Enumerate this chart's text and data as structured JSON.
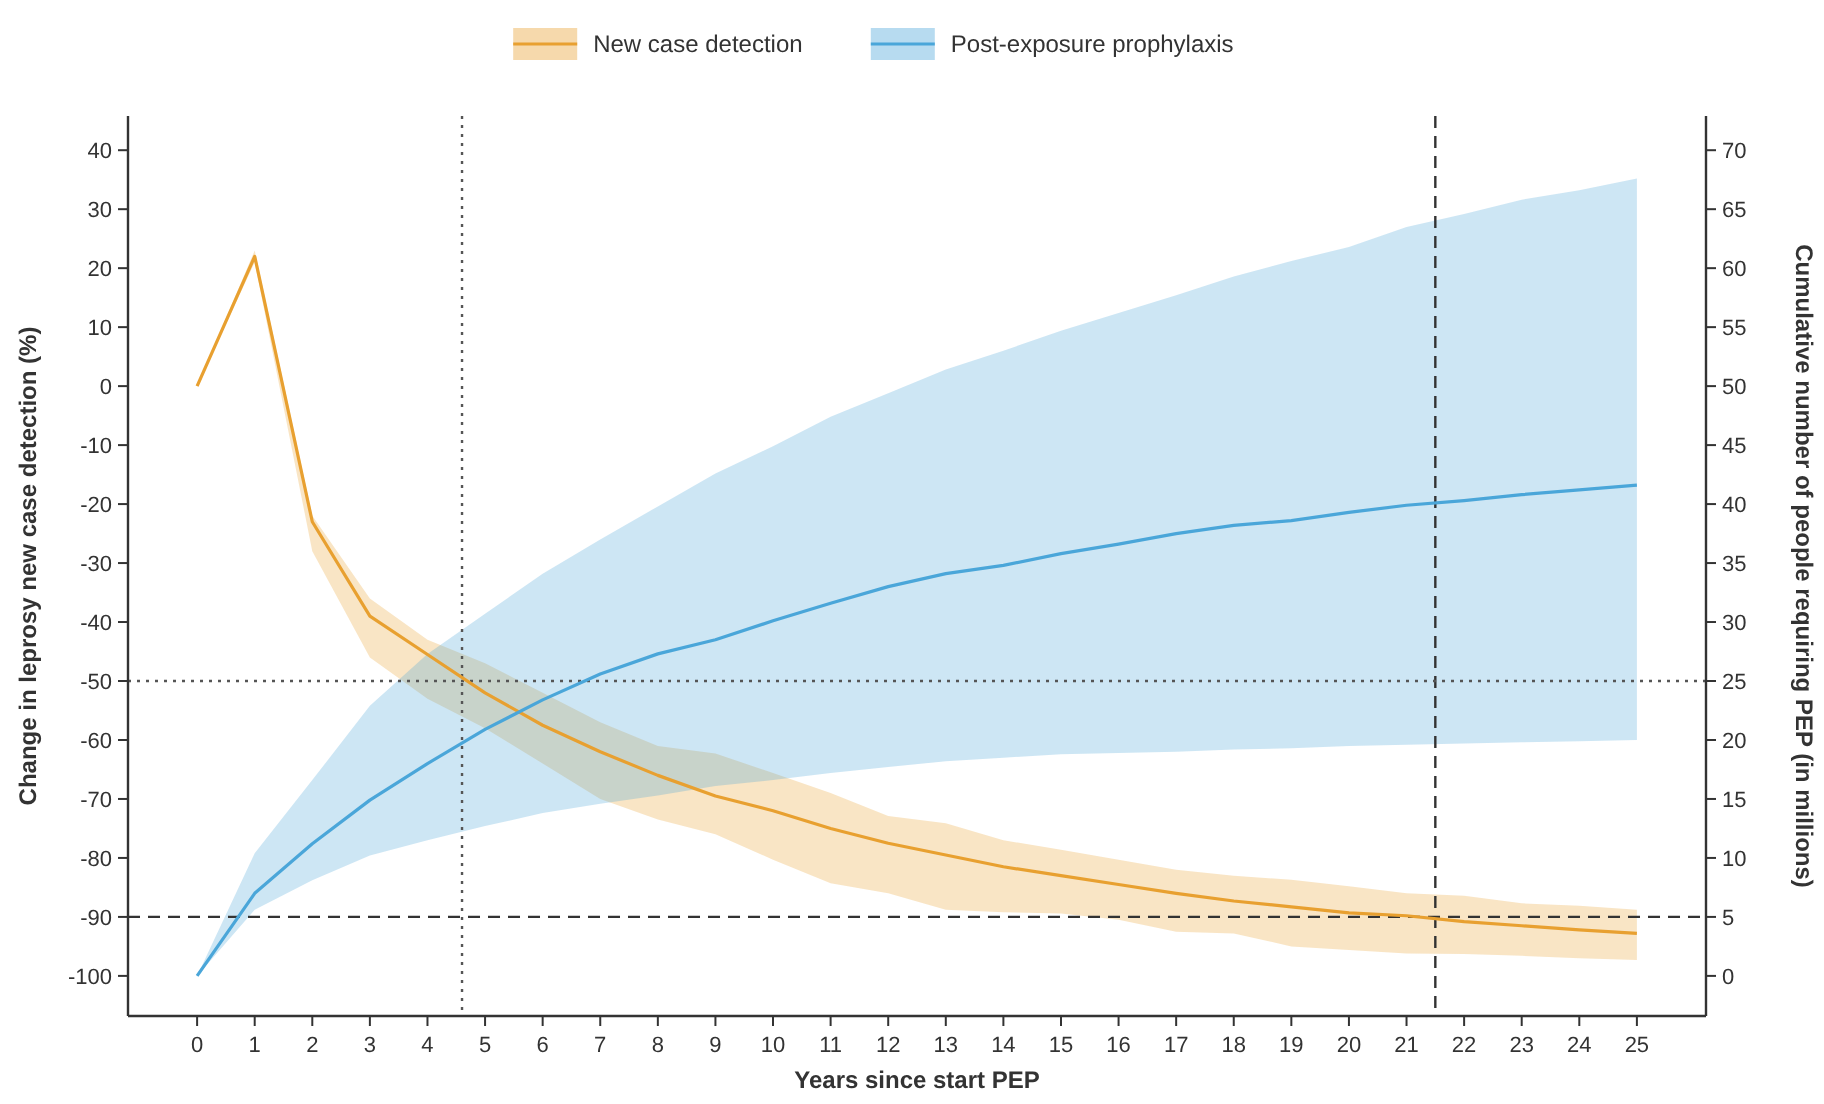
{
  "chart_data": {
    "type": "line",
    "xlabel": "Years since start PEP",
    "ylabel": "Change in leprosy new case detection (%)",
    "y2label": "Cumulative number of people requiring PEP (in millions)",
    "x": [
      0,
      1,
      2,
      3,
      4,
      5,
      6,
      7,
      8,
      9,
      10,
      11,
      12,
      13,
      14,
      15,
      16,
      17,
      18,
      19,
      20,
      21,
      22,
      23,
      24,
      25
    ],
    "series": [
      {
        "name": "New case detection",
        "color": "#e8a030",
        "values": [
          0,
          22,
          -23,
          -39,
          -45.5,
          -52,
          -57.5,
          -62,
          -66,
          -69.5,
          -72,
          -75,
          -77.5,
          -79.5,
          -81.5,
          -83,
          -84.5,
          -86,
          -87.3,
          -88.3,
          -89.3,
          -89.8,
          -90.8,
          -91.5,
          -92.2,
          -92.8
        ],
        "lower": [
          0,
          21,
          -28,
          -46,
          -53,
          -58,
          -64,
          -70,
          -73.5,
          -76,
          -80.3,
          -84.3,
          -86,
          -88.8,
          -89.2,
          -89.4,
          -90.5,
          -92.5,
          -92.8,
          -95,
          -95.6,
          -96.2,
          -96.3,
          -96.6,
          -97,
          -97.3
        ],
        "upper": [
          0,
          23,
          -22,
          -36,
          -43,
          -47,
          -52,
          -57,
          -61,
          -62.3,
          -65.6,
          -69,
          -72.9,
          -74.1,
          -77,
          -78.6,
          -80.3,
          -82,
          -83,
          -83.7,
          -84.8,
          -86,
          -86.4,
          -87.7,
          -88.1,
          -88.8
        ]
      },
      {
        "name": "Post-exposure prophylaxis",
        "color": "#4aa6d9",
        "axis": "y2",
        "values": [
          0,
          7,
          11.2,
          14.9,
          18,
          20.9,
          23.4,
          25.6,
          27.3,
          28.5,
          30.1,
          31.6,
          33,
          34.1,
          34.8,
          35.8,
          36.6,
          37.5,
          38.2,
          38.6,
          39.3,
          39.9,
          40.3,
          40.8,
          41.2,
          41.6
        ],
        "lower": [
          0,
          5.6,
          8.1,
          10.2,
          11.5,
          12.7,
          13.8,
          14.6,
          15.3,
          16.1,
          16.6,
          17.2,
          17.7,
          18.2,
          18.5,
          18.8,
          18.9,
          19,
          19.2,
          19.3,
          19.5,
          19.6,
          19.7,
          19.8,
          19.9,
          20
        ],
        "upper": [
          0,
          10.4,
          16.6,
          22.9,
          27.3,
          30.7,
          34.1,
          37,
          39.8,
          42.6,
          44.9,
          47.4,
          49.4,
          51.4,
          53,
          54.7,
          56.2,
          57.7,
          59.3,
          60.6,
          61.8,
          63.5,
          64.6,
          65.8,
          66.6,
          67.6
        ]
      }
    ],
    "xlim": [
      -1.2,
      26.2
    ],
    "xticks": [
      0,
      1,
      2,
      3,
      4,
      5,
      6,
      7,
      8,
      9,
      10,
      11,
      12,
      13,
      14,
      15,
      16,
      17,
      18,
      19,
      20,
      21,
      22,
      23,
      24,
      25
    ],
    "ylim": [
      -106.8,
      45.8
    ],
    "yticks": [
      -100,
      -90,
      -80,
      -70,
      -60,
      -50,
      -40,
      -30,
      -20,
      -10,
      0,
      10,
      20,
      30,
      40
    ],
    "y2lim": [
      -3.4,
      72.9
    ],
    "y2ticks": [
      0,
      5,
      10,
      15,
      20,
      25,
      30,
      35,
      40,
      45,
      50,
      55,
      60,
      65,
      70
    ],
    "ref_lines": [
      {
        "axis": "x",
        "value": 4.6,
        "line_style": "dotted",
        "color": "#555555"
      },
      {
        "axis": "x",
        "value": 21.5,
        "line_style": "dashed",
        "color": "#333333"
      },
      {
        "axis": "y",
        "value": -50,
        "line_style": "dotted",
        "color": "#555555"
      },
      {
        "axis": "y",
        "value": -90,
        "line_style": "dashed",
        "color": "#333333"
      }
    ],
    "legend": "top",
    "grid": false,
    "marker": "none",
    "line_style": "solid"
  }
}
